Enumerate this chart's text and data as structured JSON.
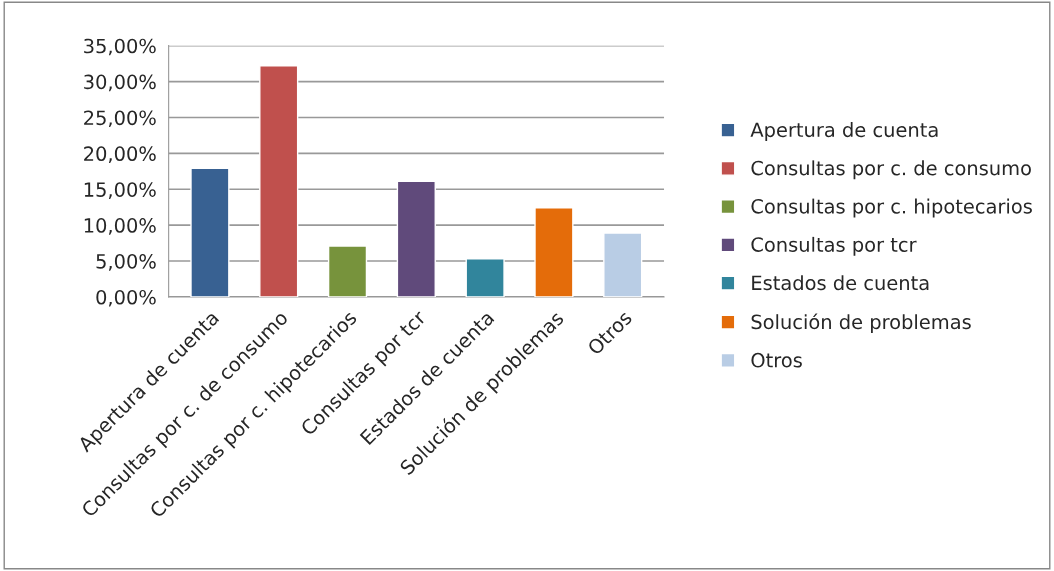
{
  "chart_data": {
    "type": "bar",
    "categories": [
      "Apertura de cuenta",
      "Consultas por c. de consumo",
      "Consultas por c. hipotecarios",
      "Consultas por tcr",
      "Estados de cuenta",
      "Solución de problemas",
      "Otros"
    ],
    "series": [
      {
        "name": "Apertura de cuenta",
        "color": "#386192",
        "values": [
          17.9,
          null,
          null,
          null,
          null,
          null,
          null
        ]
      },
      {
        "name": "Consultas por c. de consumo",
        "color": "#c0504d",
        "values": [
          null,
          32.2,
          null,
          null,
          null,
          null,
          null
        ]
      },
      {
        "name": "Consultas por c. hipotecarios",
        "color": "#77933c",
        "values": [
          null,
          null,
          7.1,
          null,
          null,
          null,
          null
        ]
      },
      {
        "name": "Consultas por tcr",
        "color": "#604a7b",
        "values": [
          null,
          null,
          null,
          16.1,
          null,
          null,
          null
        ]
      },
      {
        "name": "Estados de cuenta",
        "color": "#31859c",
        "values": [
          null,
          null,
          null,
          null,
          5.3,
          null,
          null
        ]
      },
      {
        "name": "Solución de problemas",
        "color": "#e46c0a",
        "values": [
          null,
          null,
          null,
          null,
          null,
          12.4,
          null
        ]
      },
      {
        "name": "Otros",
        "color": "#b9cde5",
        "values": [
          null,
          null,
          null,
          null,
          null,
          null,
          8.9
        ]
      }
    ],
    "ylim": [
      0,
      35
    ],
    "yticks": [
      {
        "value": 0,
        "label": "0,00%"
      },
      {
        "value": 5,
        "label": "5,00%"
      },
      {
        "value": 10,
        "label": "10,00%"
      },
      {
        "value": 15,
        "label": "15,00%"
      },
      {
        "value": 20,
        "label": "20,00%"
      },
      {
        "value": 25,
        "label": "25,00%"
      },
      {
        "value": 30,
        "label": "30,00%"
      },
      {
        "value": 35,
        "label": "35,00%"
      }
    ],
    "grid": "y",
    "legend": "right"
  }
}
